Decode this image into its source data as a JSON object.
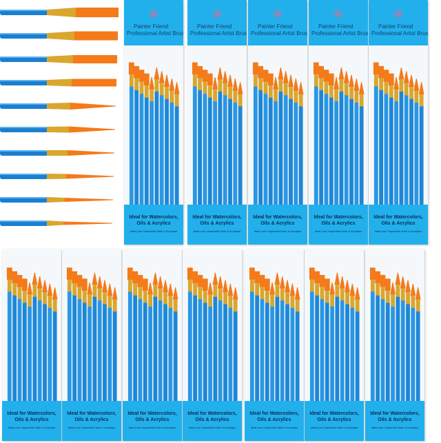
{
  "package": {
    "brand": "Painter Friend",
    "product": "Professional Artist Brush",
    "tagline_1": "Ideal for Watercolors,",
    "tagline_2": "Oils & Acrylics",
    "small_print": "Ideal pour l'Aquarelle,Huile & Acrylique"
  },
  "colors": {
    "package_blue": "#22b0ec",
    "handle_blue": "#1a7fd0",
    "ferrule_gold": "#d9a a2e",
    "bristle_orange": "#f47a1a"
  },
  "loose_brush_count": 10,
  "top_row_packages": 5,
  "bottom_row_packages": 7
}
